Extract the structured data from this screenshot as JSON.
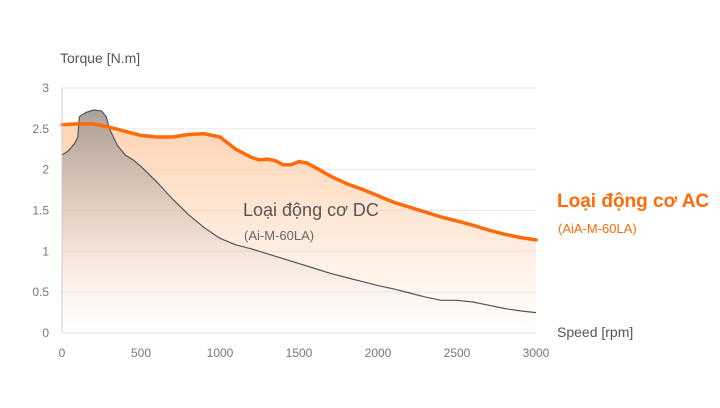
{
  "chart_data": {
    "type": "area",
    "ylabel": "Torque [N.m]",
    "xlabel": "Speed [rpm]",
    "xlim": [
      0,
      3000
    ],
    "ylim": [
      0,
      3
    ],
    "x_ticks": [
      0,
      500,
      1000,
      1500,
      2000,
      2500,
      3000
    ],
    "y_ticks": [
      0,
      0.5,
      1,
      1.5,
      2,
      2.5,
      3
    ],
    "x_tick_labels": [
      "0",
      "500",
      "1000",
      "1500",
      "2000",
      "2500",
      "3000"
    ],
    "y_tick_labels": [
      "0",
      "0.5",
      "1",
      "1.5",
      "2",
      "2.5",
      "3"
    ],
    "grid": true,
    "series": [
      {
        "name": "Loại động cơ DC",
        "model": "(Ai-M-60LA)",
        "color": "#555555",
        "fill": "#b0a8a6",
        "x": [
          0,
          40,
          80,
          100,
          110,
          150,
          200,
          250,
          280,
          300,
          350,
          400,
          450,
          500,
          600,
          700,
          800,
          900,
          1000,
          1100,
          1200,
          1300,
          1400,
          1500,
          1600,
          1700,
          1800,
          1900,
          2000,
          2100,
          2200,
          2300,
          2400,
          2500,
          2600,
          2700,
          2800,
          2900,
          3000
        ],
        "values": [
          2.18,
          2.23,
          2.32,
          2.4,
          2.65,
          2.7,
          2.73,
          2.72,
          2.65,
          2.5,
          2.3,
          2.18,
          2.12,
          2.04,
          1.85,
          1.64,
          1.45,
          1.29,
          1.16,
          1.08,
          1.03,
          0.97,
          0.91,
          0.85,
          0.79,
          0.73,
          0.68,
          0.63,
          0.58,
          0.54,
          0.49,
          0.44,
          0.4,
          0.4,
          0.38,
          0.34,
          0.3,
          0.27,
          0.25
        ]
      },
      {
        "name": "Loại động cơ AC",
        "model": "(AiA-M-60LA)",
        "color": "#ff6a0a",
        "fill": "#ffd2b0",
        "x": [
          0,
          100,
          200,
          300,
          400,
          500,
          600,
          700,
          800,
          900,
          1000,
          1100,
          1200,
          1250,
          1300,
          1350,
          1400,
          1450,
          1500,
          1550,
          1600,
          1700,
          1800,
          1900,
          2000,
          2100,
          2200,
          2300,
          2400,
          2500,
          2600,
          2700,
          2800,
          2900,
          3000
        ],
        "values": [
          2.55,
          2.56,
          2.56,
          2.52,
          2.47,
          2.42,
          2.4,
          2.4,
          2.43,
          2.44,
          2.4,
          2.25,
          2.15,
          2.12,
          2.13,
          2.11,
          2.06,
          2.06,
          2.1,
          2.08,
          2.03,
          1.92,
          1.83,
          1.76,
          1.68,
          1.6,
          1.54,
          1.48,
          1.42,
          1.37,
          1.32,
          1.26,
          1.21,
          1.17,
          1.14
        ]
      }
    ]
  }
}
